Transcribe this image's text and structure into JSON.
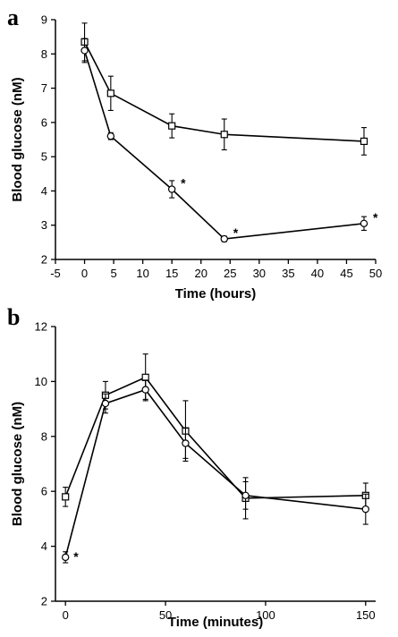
{
  "chart_data": [
    {
      "type": "line",
      "panel_label": "a",
      "xlabel": "Time (hours)",
      "ylabel": "Blood glucose (nM)",
      "xlim": [
        -5,
        50
      ],
      "ylim": [
        2,
        9
      ],
      "xticks": [
        -5,
        0,
        5,
        10,
        15,
        20,
        25,
        30,
        35,
        40,
        45,
        50
      ],
      "yticks": [
        2,
        3,
        4,
        5,
        6,
        7,
        8,
        9
      ],
      "grid": false,
      "series": [
        {
          "marker": "square",
          "points": [
            {
              "x": 0,
              "y": 8.35,
              "err": 0.55
            },
            {
              "x": 4.5,
              "y": 6.85,
              "err": 0.5
            },
            {
              "x": 15,
              "y": 5.9,
              "err": 0.35
            },
            {
              "x": 24,
              "y": 5.65,
              "err": 0.45
            },
            {
              "x": 48,
              "y": 5.45,
              "err": 0.4
            }
          ]
        },
        {
          "marker": "circle",
          "points": [
            {
              "x": 0,
              "y": 8.1,
              "err": 0.35,
              "sig": ""
            },
            {
              "x": 4.5,
              "y": 5.6,
              "err": 0.1,
              "sig": ""
            },
            {
              "x": 15,
              "y": 4.05,
              "err": 0.25,
              "sig": "*"
            },
            {
              "x": 24,
              "y": 2.6,
              "err": 0.08,
              "sig": "*"
            },
            {
              "x": 48,
              "y": 3.05,
              "err": 0.2,
              "sig": "*"
            }
          ]
        }
      ]
    },
    {
      "type": "line",
      "panel_label": "b",
      "xlabel": "Time (minutes)",
      "ylabel": "Blood glucose (nM)",
      "xlim": [
        -5,
        155
      ],
      "ylim": [
        2,
        12
      ],
      "xticks": [
        0,
        50,
        100,
        150
      ],
      "yticks": [
        2,
        4,
        6,
        8,
        10,
        12
      ],
      "grid": false,
      "series": [
        {
          "marker": "square",
          "points": [
            {
              "x": 0,
              "y": 5.8,
              "err": 0.35
            },
            {
              "x": 20,
              "y": 9.5,
              "err": 0.5
            },
            {
              "x": 40,
              "y": 10.15,
              "err": 0.85
            },
            {
              "x": 60,
              "y": 8.2,
              "err": 1.1
            },
            {
              "x": 90,
              "y": 5.75,
              "err": 0.75
            },
            {
              "x": 150,
              "y": 5.85,
              "err": 0.45
            }
          ]
        },
        {
          "marker": "circle",
          "points": [
            {
              "x": 0,
              "y": 3.6,
              "err": 0.2,
              "sig": "*"
            },
            {
              "x": 20,
              "y": 9.2,
              "err": 0.35,
              "sig": ""
            },
            {
              "x": 40,
              "y": 9.7,
              "err": 0.35,
              "sig": ""
            },
            {
              "x": 60,
              "y": 7.75,
              "err": 0.55,
              "sig": ""
            },
            {
              "x": 90,
              "y": 5.85,
              "err": 0.5,
              "sig": ""
            },
            {
              "x": 150,
              "y": 5.35,
              "err": 0.55,
              "sig": ""
            }
          ]
        }
      ]
    }
  ]
}
